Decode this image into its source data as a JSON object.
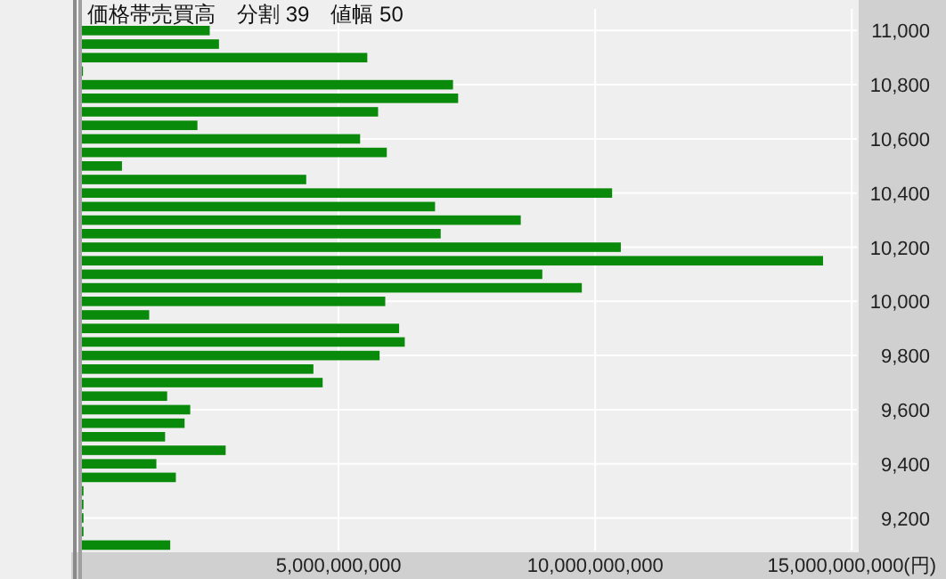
{
  "chart_data": {
    "type": "bar",
    "orientation": "horizontal",
    "title": "価格帯売買高　分割 39　値幅 50",
    "x": [
      9100,
      9150,
      9200,
      9250,
      9300,
      9350,
      9400,
      9450,
      9500,
      9550,
      9600,
      9650,
      9700,
      9750,
      9800,
      9850,
      9900,
      9950,
      10000,
      10050,
      10100,
      10150,
      10200,
      10250,
      10300,
      10350,
      10400,
      10450,
      10500,
      10550,
      10600,
      10650,
      10700,
      10750,
      10800,
      10850,
      10900,
      10950,
      11000
    ],
    "values": [
      1720000000,
      30000000,
      30000000,
      30000000,
      30000000,
      1830000000,
      1450000000,
      2800000000,
      1620000000,
      2000000000,
      2110000000,
      1660000000,
      4690000000,
      4510000000,
      5800000000,
      6290000000,
      6180000000,
      1310000000,
      5910000000,
      9740000000,
      8970000000,
      14440000000,
      10500000000,
      6990000000,
      8550000000,
      6880000000,
      10330000000,
      4370000000,
      780000000,
      5940000000,
      5420000000,
      2250000000,
      5770000000,
      7330000000,
      7230000000,
      20000000,
      5560000000,
      2670000000,
      2490000000
    ],
    "color": "#0a8a0a",
    "xlim": [
      0,
      15100000000
    ],
    "xticks": [
      {
        "value": 5000000000,
        "label": "5,000,000,000"
      },
      {
        "value": 10000000000,
        "label": "10,000,000,000"
      },
      {
        "value": 15000000000,
        "label": "15,000,000,000(円)"
      }
    ],
    "ylim": [
      9080,
      11080
    ],
    "yticks": [
      {
        "value": 9200,
        "label": "9,200"
      },
      {
        "value": 9400,
        "label": "9,400"
      },
      {
        "value": 9600,
        "label": "9,600"
      },
      {
        "value": 9800,
        "label": "9,800"
      },
      {
        "value": 10000,
        "label": "10,000"
      },
      {
        "value": 10200,
        "label": "10,200"
      },
      {
        "value": 10400,
        "label": "10,400"
      },
      {
        "value": 10600,
        "label": "10,600"
      },
      {
        "value": 10800,
        "label": "10,800"
      },
      {
        "value": 11000,
        "label": "11,000"
      }
    ],
    "grid": true
  }
}
